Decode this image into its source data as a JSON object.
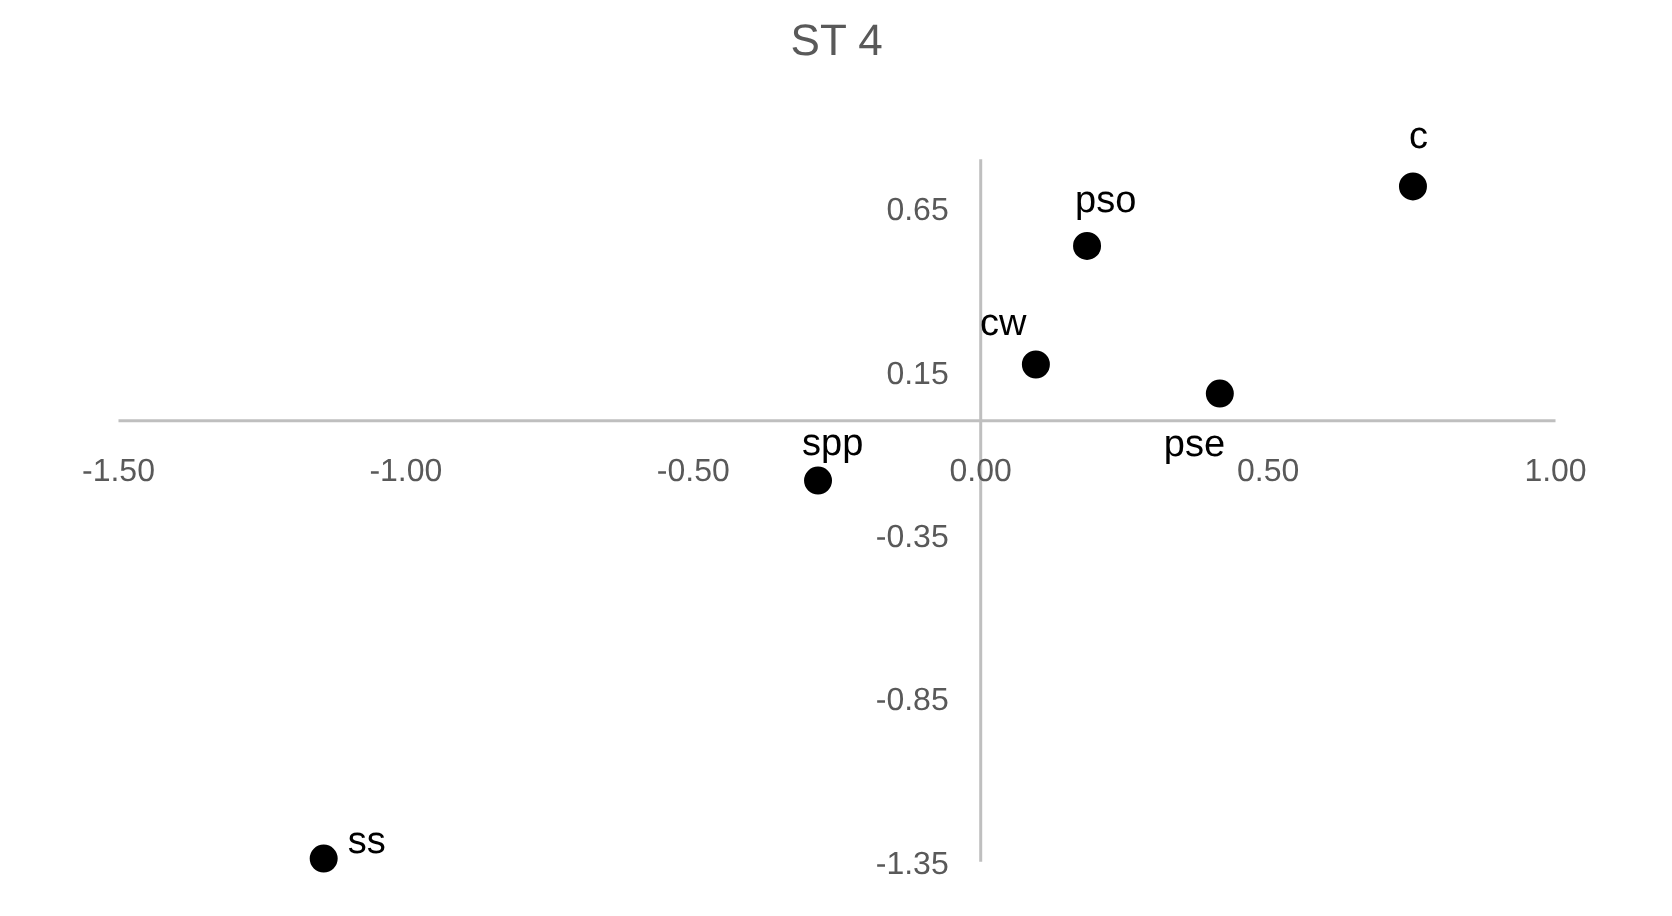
{
  "chart_data": {
    "type": "scatter",
    "title": "ST 4",
    "x": [
      0.752,
      0.185,
      0.096,
      0.416,
      -0.283,
      -1.143
    ],
    "series": [
      {
        "color": "#000000",
        "values": [
          0.717,
          0.535,
          0.172,
          0.083,
          -0.183,
          -1.34
        ]
      }
    ],
    "marker": "circle",
    "grid": false,
    "xlim": [
      -1.5,
      1.0
    ],
    "xticks": [
      {
        "value": -1.5,
        "label": "-1.50"
      },
      {
        "value": -1.0,
        "label": "-1.00"
      },
      {
        "value": -0.5,
        "label": "-0.50"
      },
      {
        "value": 0,
        "label": "0.00"
      },
      {
        "value": 0.5,
        "label": "0.50"
      },
      {
        "value": 1.0,
        "label": "1.00"
      }
    ],
    "ylim": [
      -1.35,
      0.8
    ],
    "yticks": [
      -1.35,
      -0.85,
      -0.35,
      0.15,
      0.65
    ],
    "annotations": [
      {
        "text": "c",
        "x": 0.752,
        "y": 0.717
      },
      {
        "text": "pso",
        "x": 0.185,
        "y": 0.535
      },
      {
        "text": "cw",
        "x": 0.096,
        "y": 0.172
      },
      {
        "text": "pse",
        "x": 0.416,
        "y": 0.083
      },
      {
        "text": "spp",
        "x": -0.283,
        "y": -0.183
      },
      {
        "text": "ss",
        "x": -1.143,
        "y": -1.34
      }
    ]
  }
}
